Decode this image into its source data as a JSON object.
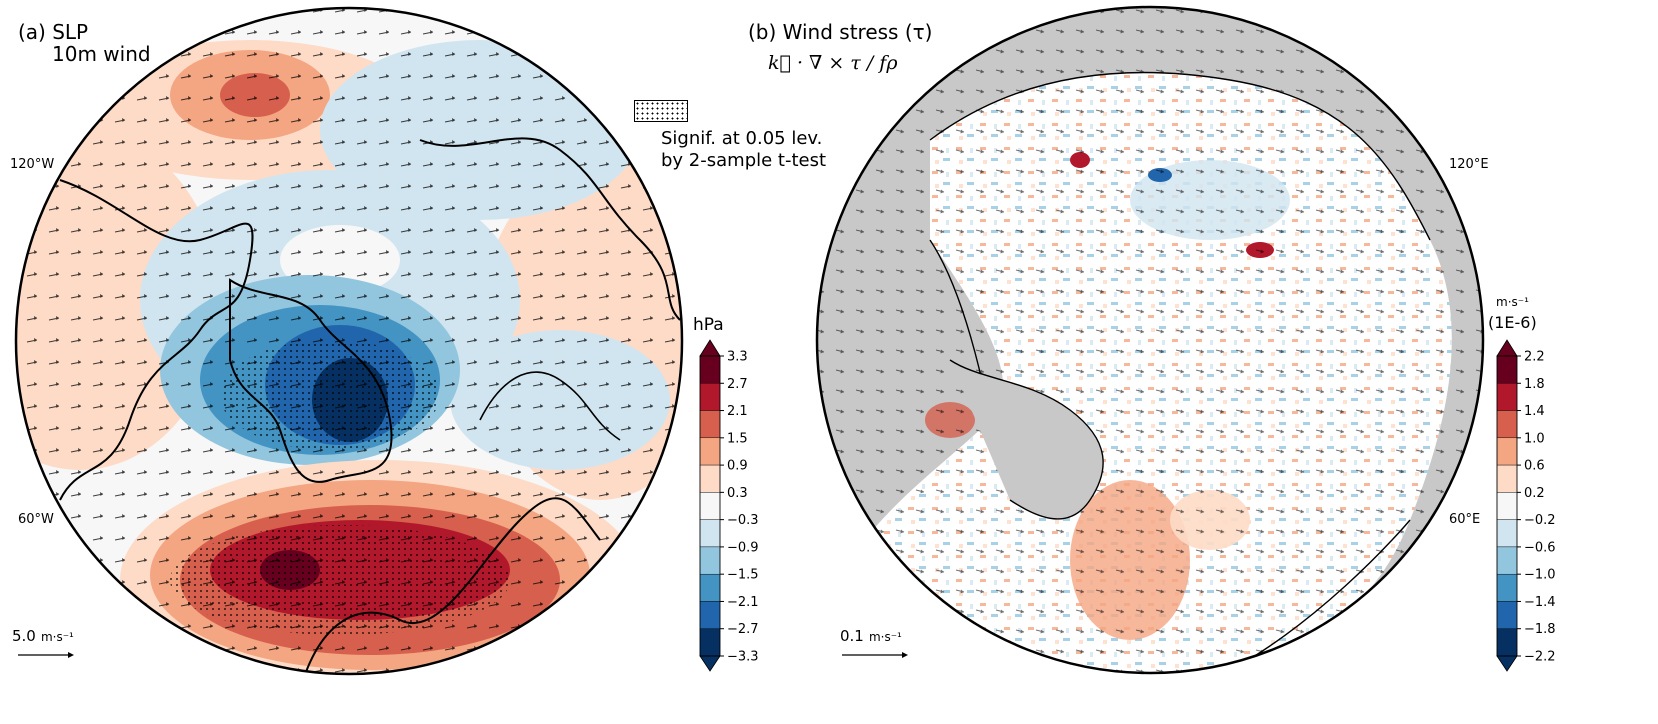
{
  "panel_a": {
    "title_line1": "(a) SLP",
    "title_line2": "10m wind",
    "lon_left_top": "120°W",
    "lon_left_bottom": "60°W",
    "scale_label": "5.0",
    "scale_unit": "m·s⁻¹",
    "legend_line1": "Signif. at 0.05 lev.",
    "legend_line2": "by 2-sample t-test",
    "colorbar_unit": "hPa",
    "colorbar_ticks": [
      "3.3",
      "2.7",
      "2.1",
      "1.5",
      "0.9",
      "0.3",
      "−0.3",
      "−0.9",
      "−1.5",
      "−2.1",
      "−2.7",
      "−3.3"
    ],
    "colors": [
      "#67001f",
      "#b2182b",
      "#d6604d",
      "#f4a582",
      "#fddbc7",
      "#f7f7f7",
      "#d1e5f0",
      "#92c5de",
      "#4393c3",
      "#2166ac",
      "#053061"
    ]
  },
  "panel_b": {
    "title_line1": "(b) Wind stress (τ)",
    "formula": "k⃗ · ∇ × τ / fρ",
    "lon_right_top": "120°E",
    "lon_right_bottom": "60°E",
    "scale_label": "0.1",
    "scale_unit": "m·s⁻¹",
    "colorbar_unit_top": "m·s⁻¹",
    "colorbar_unit_bottom": "(1E-6)",
    "colorbar_ticks": [
      "2.2",
      "1.8",
      "1.4",
      "1.0",
      "0.6",
      "0.2",
      "−0.2",
      "−0.6",
      "−1.0",
      "−1.4",
      "−1.8",
      "−2.2"
    ]
  }
}
